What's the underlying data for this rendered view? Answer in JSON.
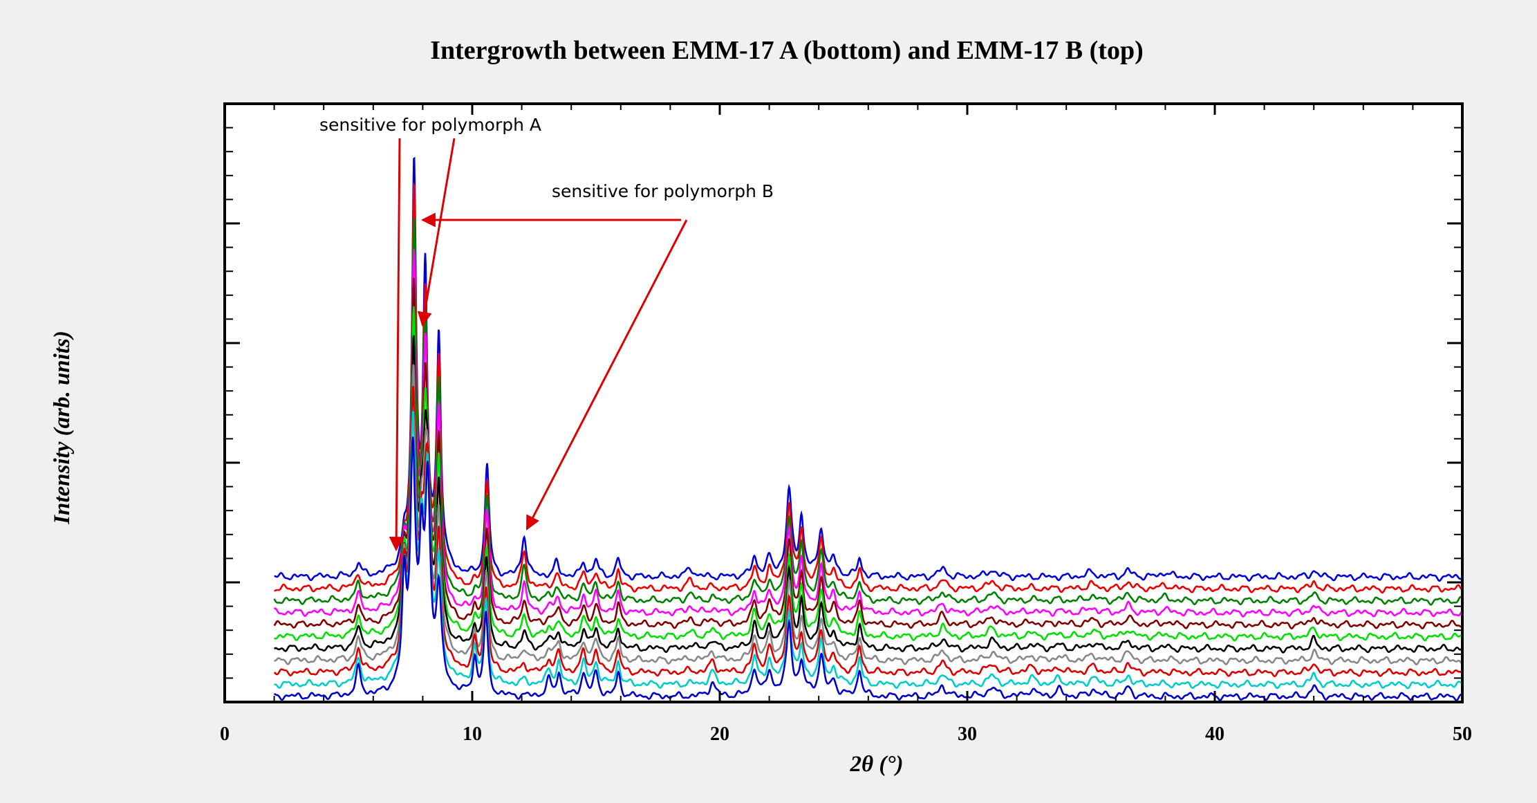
{
  "chart_data": {
    "type": "line",
    "title": "Intergrowth between EMM-17 A (bottom) and EMM-17 B (top)",
    "xlabel": "2θ (°)",
    "ylabel": "Intensity (arb. units)",
    "xlim": [
      0,
      50
    ],
    "x_ticks": [
      "0",
      "10",
      "20",
      "30",
      "40",
      "50"
    ],
    "grid": false,
    "legend": "none",
    "x_start": 2,
    "series": [
      {
        "color": "#0000cc"
      },
      {
        "color": "#00cccc"
      },
      {
        "color": "#dd0000"
      },
      {
        "color": "#888888"
      },
      {
        "color": "#000000"
      },
      {
        "color": "#00e000"
      },
      {
        "color": "#800000"
      },
      {
        "color": "#ff00ff"
      },
      {
        "color": "#008000"
      },
      {
        "color": "#ee0000"
      },
      {
        "color": "#0000dd"
      }
    ],
    "peaks_bottom": [
      [
        5.4,
        0.6,
        0.12
      ],
      [
        7.25,
        2.2,
        0.1
      ],
      [
        7.6,
        5.0,
        0.12
      ],
      [
        7.95,
        2.5,
        0.1
      ],
      [
        8.2,
        4.2,
        0.12
      ],
      [
        8.65,
        2.0,
        0.12
      ],
      [
        10.1,
        0.8,
        0.1
      ],
      [
        10.55,
        1.8,
        0.1
      ],
      [
        13.1,
        0.35,
        0.12
      ],
      [
        13.5,
        0.5,
        0.1
      ],
      [
        14.5,
        0.5,
        0.12
      ],
      [
        15.0,
        0.5,
        0.12
      ],
      [
        15.9,
        0.5,
        0.1
      ],
      [
        19.7,
        0.3,
        0.15
      ],
      [
        21.4,
        0.6,
        0.12
      ],
      [
        22.0,
        0.5,
        0.12
      ],
      [
        22.8,
        1.5,
        0.12
      ],
      [
        23.3,
        0.6,
        0.1
      ],
      [
        24.1,
        0.8,
        0.12
      ],
      [
        24.6,
        0.3,
        0.12
      ],
      [
        25.65,
        0.6,
        0.1
      ],
      [
        29.0,
        0.25,
        0.15
      ],
      [
        31.0,
        0.2,
        0.2
      ],
      [
        32.6,
        0.15,
        0.2
      ],
      [
        33.7,
        0.15,
        0.15
      ],
      [
        35.1,
        0.15,
        0.2
      ],
      [
        36.5,
        0.2,
        0.15
      ],
      [
        44.0,
        0.25,
        0.12
      ]
    ],
    "peaks_top": [
      [
        5.4,
        0.3,
        0.12
      ],
      [
        7.25,
        0.5,
        0.1
      ],
      [
        7.65,
        8.7,
        0.1
      ],
      [
        8.1,
        6.2,
        0.1
      ],
      [
        8.65,
        5.0,
        0.1
      ],
      [
        10.6,
        2.5,
        0.1
      ],
      [
        12.1,
        0.9,
        0.12
      ],
      [
        13.4,
        0.3,
        0.12
      ],
      [
        14.5,
        0.3,
        0.12
      ],
      [
        15.0,
        0.35,
        0.12
      ],
      [
        15.9,
        0.4,
        0.1
      ],
      [
        18.8,
        0.2,
        0.15
      ],
      [
        21.4,
        0.4,
        0.12
      ],
      [
        22.0,
        0.35,
        0.12
      ],
      [
        22.8,
        1.8,
        0.12
      ],
      [
        23.3,
        1.2,
        0.1
      ],
      [
        24.1,
        1.0,
        0.12
      ],
      [
        24.6,
        0.35,
        0.12
      ],
      [
        25.65,
        0.4,
        0.1
      ],
      [
        29.0,
        0.2,
        0.15
      ],
      [
        31.0,
        0.15,
        0.2
      ],
      [
        35.0,
        0.1,
        0.2
      ],
      [
        36.5,
        0.15,
        0.15
      ],
      [
        38.0,
        0.1,
        0.2
      ],
      [
        44.0,
        0.15,
        0.12
      ]
    ],
    "annotations": [
      {
        "text": "sensitive for polymorph A",
        "arrows_to_x": [
          7.2,
          8.25
        ]
      },
      {
        "text": "sensitive for polymorph B",
        "arrows_to_x": [
          8.2,
          12.4
        ]
      }
    ]
  }
}
